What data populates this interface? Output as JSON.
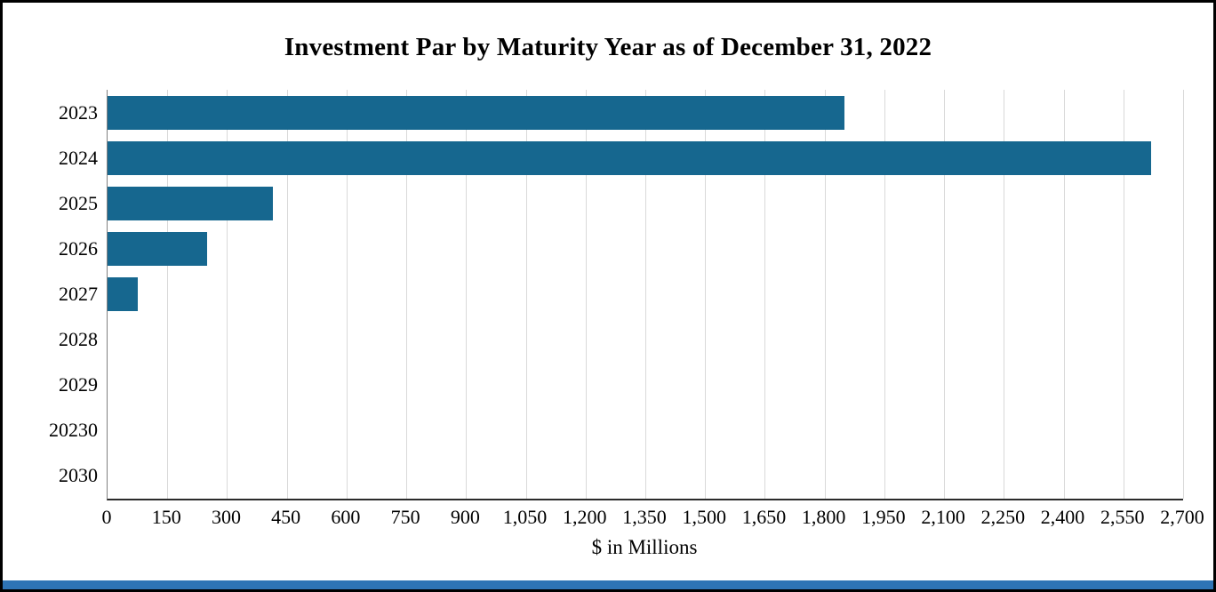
{
  "chart_data": {
    "type": "bar",
    "orientation": "horizontal",
    "title": "Investment Par by Maturity Year as of December 31, 2022",
    "categories": [
      "2023",
      "2024",
      "2025",
      "2026",
      "2027",
      "2028",
      "2029",
      "20230",
      "2030"
    ],
    "values": [
      1850,
      2620,
      415,
      250,
      75,
      0,
      0,
      0,
      0
    ],
    "xlabel": "$ in Millions",
    "xlim": [
      0,
      2700
    ],
    "x_ticks": [
      0,
      150,
      300,
      450,
      600,
      750,
      900,
      1050,
      1200,
      1350,
      1500,
      1650,
      1800,
      1950,
      2100,
      2250,
      2400,
      2550,
      2700
    ],
    "x_tick_labels": [
      "0",
      "150",
      "300",
      "450",
      "600",
      "750",
      "900",
      "1,050",
      "1,200",
      "1,350",
      "1,500",
      "1,650",
      "1,800",
      "1,950",
      "2,100",
      "2,250",
      "2,400",
      "2,550",
      "2,700"
    ],
    "bar_color": "#16678f",
    "grid": true,
    "gridline_color": "#d9d9d9",
    "legend": "none"
  },
  "colors": {
    "frame_border": "#000000",
    "bottom_accent": "#2e74b5"
  }
}
